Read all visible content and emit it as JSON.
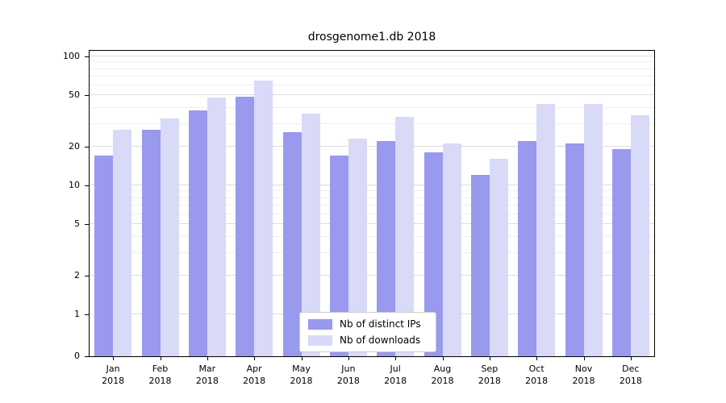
{
  "figure": {
    "title": "drosgenome1.db 2018"
  },
  "chart_data": {
    "type": "bar",
    "title": "drosgenome1.db 2018",
    "yscale": "symlog",
    "ylim": [
      0,
      115
    ],
    "grid": true,
    "legend_position": "lower center",
    "year": "2018",
    "months": [
      "Jan",
      "Feb",
      "Mar",
      "Apr",
      "May",
      "Jun",
      "Jul",
      "Aug",
      "Sep",
      "Oct",
      "Nov",
      "Dec"
    ],
    "yticks": [
      0,
      1,
      2,
      5,
      10,
      20,
      50,
      100
    ],
    "yticks_minor": [
      3,
      4,
      6,
      7,
      8,
      9,
      30,
      40,
      60,
      70,
      80,
      90
    ],
    "series": [
      {
        "name": "Nb of distinct IPs",
        "color": "#9999ee",
        "values": [
          17,
          27,
          38,
          49,
          26,
          17,
          22,
          18,
          12,
          22,
          21,
          19
        ]
      },
      {
        "name": "Nb of downloads",
        "color": "#d9d9f8",
        "values": [
          27,
          33,
          48,
          65,
          36,
          23,
          34,
          21,
          16,
          43,
          43,
          35
        ]
      }
    ]
  }
}
